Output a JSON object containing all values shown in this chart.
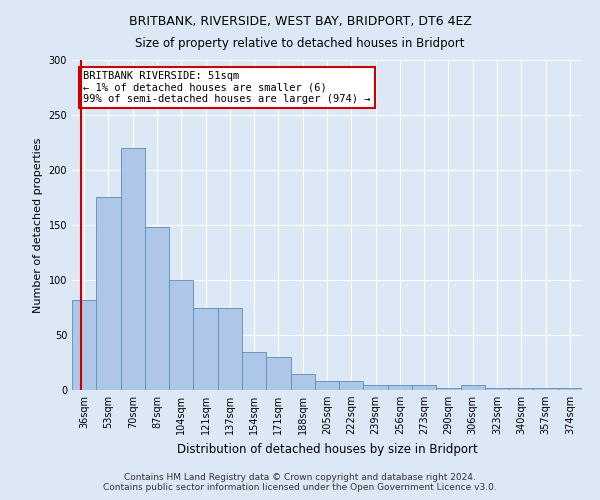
{
  "title1": "BRITBANK, RIVERSIDE, WEST BAY, BRIDPORT, DT6 4EZ",
  "title2": "Size of property relative to detached houses in Bridport",
  "xlabel": "Distribution of detached houses by size in Bridport",
  "ylabel": "Number of detached properties",
  "categories": [
    "36sqm",
    "53sqm",
    "70sqm",
    "87sqm",
    "104sqm",
    "121sqm",
    "137sqm",
    "154sqm",
    "171sqm",
    "188sqm",
    "205sqm",
    "222sqm",
    "239sqm",
    "256sqm",
    "273sqm",
    "290sqm",
    "306sqm",
    "323sqm",
    "340sqm",
    "357sqm",
    "374sqm"
  ],
  "values": [
    82,
    175,
    220,
    148,
    100,
    75,
    75,
    35,
    30,
    15,
    8,
    8,
    5,
    5,
    5,
    2,
    5,
    2,
    2,
    2,
    2
  ],
  "bar_color": "#aec6e8",
  "bar_edge_color": "#5b8db8",
  "annotation_text": "BRITBANK RIVERSIDE: 51sqm\n← 1% of detached houses are smaller (6)\n99% of semi-detached houses are larger (974) →",
  "annotation_box_color": "#ffffff",
  "annotation_box_edge_color": "#cc0000",
  "vline_color": "#cc0000",
  "vline_x": -0.15,
  "ylim": [
    0,
    300
  ],
  "yticks": [
    0,
    50,
    100,
    150,
    200,
    250,
    300
  ],
  "footer1": "Contains HM Land Registry data © Crown copyright and database right 2024.",
  "footer2": "Contains public sector information licensed under the Open Government Licence v3.0.",
  "background_color": "#dce8f5",
  "plot_bg_color": "#dce8f5",
  "grid_color": "#ffffff",
  "title1_fontsize": 9,
  "title2_fontsize": 8.5,
  "ylabel_fontsize": 8,
  "xlabel_fontsize": 8.5,
  "tick_fontsize": 7,
  "footer_fontsize": 6.5
}
